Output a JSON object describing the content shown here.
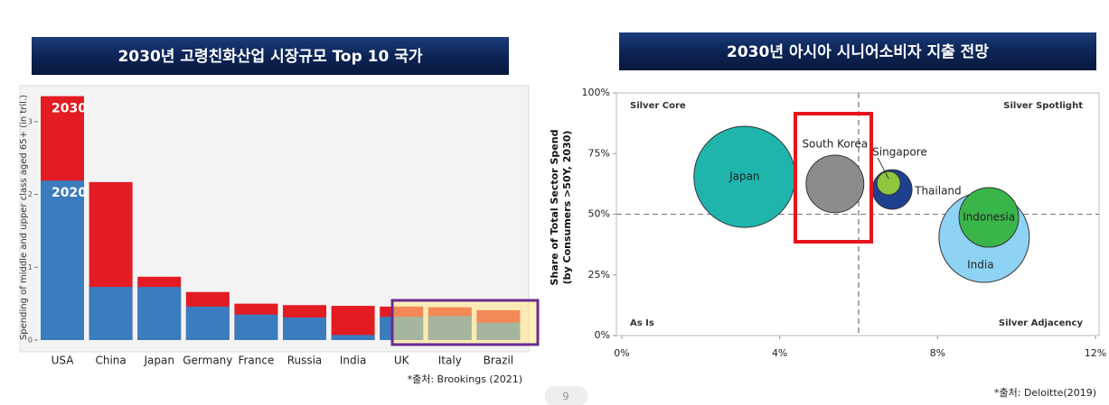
{
  "chart_data": [
    {
      "type": "bar",
      "title": "2030년 고령친화산업 시장규모  Top 10 국가",
      "y_label": "Spending of middle and upper class aged 65+ (in tril.)",
      "categories": [
        "USA",
        "China",
        "Japan",
        "Germany",
        "France",
        "Russia",
        "India",
        "UK",
        "Italy",
        "Brazil"
      ],
      "series": [
        {
          "name": "2030",
          "color": "#e31b23",
          "values": [
            3.35,
            2.17,
            0.87,
            0.66,
            0.5,
            0.48,
            0.47,
            0.46,
            0.45,
            0.41
          ]
        },
        {
          "name": "2020",
          "color": "#3a7dbf",
          "values": [
            2.19,
            0.73,
            0.73,
            0.46,
            0.35,
            0.31,
            0.07,
            0.32,
            0.33,
            0.24
          ]
        }
      ],
      "ylim": [
        0,
        3.5
      ],
      "yticks": [
        0,
        1,
        2,
        3
      ],
      "source": "*출처: Brookings (2021)"
    },
    {
      "type": "bubble",
      "title": "2030년 아시아 시니어소비자 지출 전망",
      "y_label": [
        "Share of Total Sector Spend",
        "(by Consumers >50Y, 2030)"
      ],
      "points": [
        {
          "label": "Japan",
          "x": 3.11,
          "y": 65.4,
          "size": 31.4,
          "color": "#1fb5ad"
        },
        {
          "label": "South Korea",
          "x": 5.4,
          "y": 62.5,
          "size": 10.2,
          "color": "#8a8c8e"
        },
        {
          "label": "Thailand",
          "x": 6.85,
          "y": 60.2,
          "size": 4.8,
          "color": "#1f3f8f"
        },
        {
          "label": "Singapore",
          "x": 6.76,
          "y": 62.8,
          "size": 1.7,
          "color": "#8dc63f"
        },
        {
          "label": "India",
          "x": 9.18,
          "y": 40.5,
          "size": 25,
          "color": "#8fd3f4"
        },
        {
          "label": "Indonesia",
          "x": 9.3,
          "y": 48.7,
          "size": 10.9,
          "color": "#39b54a"
        }
      ],
      "xlim": [
        0,
        12
      ],
      "xticks": [
        {
          "value": 0,
          "label": "0%"
        },
        {
          "value": 4,
          "label": "4%"
        },
        {
          "value": 8,
          "label": "8%"
        },
        {
          "value": 12,
          "label": "12%"
        }
      ],
      "ylim": [
        0,
        100
      ],
      "yticks": [
        {
          "value": 0,
          "label": "0%"
        },
        {
          "value": 25,
          "label": "25%"
        },
        {
          "value": 50,
          "label": "50%"
        },
        {
          "value": 75,
          "label": "75%"
        },
        {
          "value": 100,
          "label": "100%"
        }
      ],
      "reference_lines": {
        "x": 6,
        "y": 50
      },
      "annotations": [
        "Silver Core",
        "Silver Spotlight",
        "As Is",
        "Silver Adjacency"
      ],
      "source": "*출처: Deloitte(2019)"
    }
  ],
  "page_number": 9
}
